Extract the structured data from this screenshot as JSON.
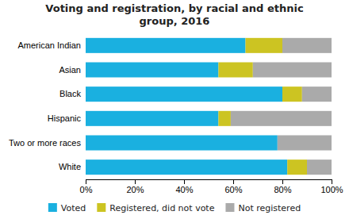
{
  "chart_data": {
    "type": "bar",
    "orientation": "horizontal",
    "stacked": true,
    "title": "Voting and registration, by racial and ethnic\ngroup, 2016",
    "categories": [
      "White",
      "Two or more races",
      "Hispanic",
      "Black",
      "Asian",
      "American Indian"
    ],
    "series": [
      {
        "name": "Voted",
        "color": "#1ab0e0",
        "values": [
          82,
          78,
          54,
          80,
          54,
          65
        ]
      },
      {
        "name": "Registered, did not vote",
        "color": "#ccc422",
        "values": [
          8,
          0,
          5,
          8,
          14,
          15
        ]
      },
      {
        "name": "Not registered",
        "color": "#aaaaaa",
        "values": [
          10,
          22,
          41,
          12,
          32,
          20
        ]
      }
    ],
    "xlim": [
      0,
      100
    ],
    "xticks": [
      {
        "value": 0,
        "label": "0%"
      },
      {
        "value": 20,
        "label": "20%"
      },
      {
        "value": 40,
        "label": "40%"
      },
      {
        "value": 60,
        "label": "60%"
      },
      {
        "value": 80,
        "label": "80%"
      },
      {
        "value": 100,
        "label": "100%"
      }
    ],
    "grid": false,
    "legend": "bottom"
  }
}
